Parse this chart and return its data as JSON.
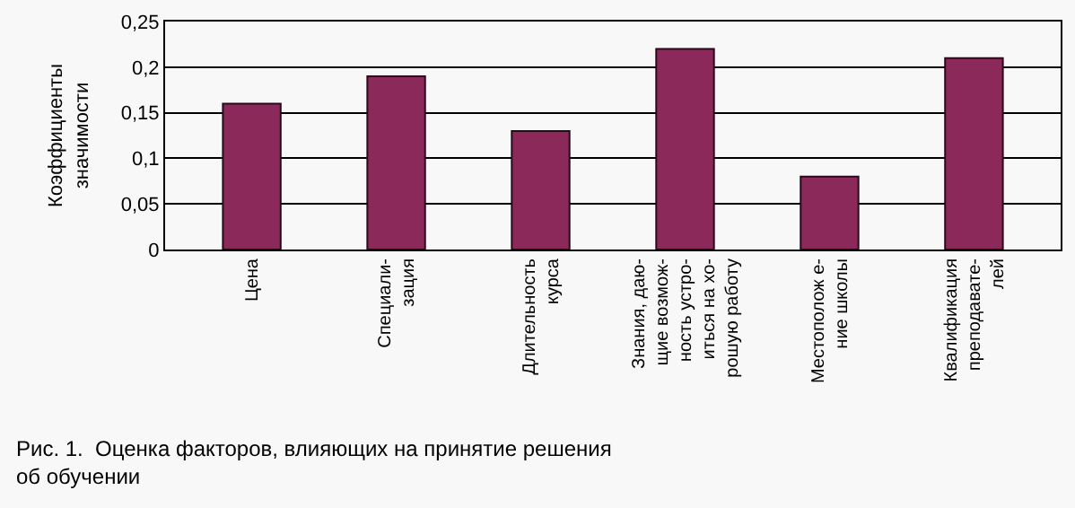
{
  "chart_data": {
    "type": "bar",
    "ylabel": "Коэффициенты\nзначимости",
    "categories": [
      "Цена",
      "Специали-\nзация",
      "Длительность\nкурса",
      "Знания, даю-\nщие возмож-\nность устро-\nиться на хо-\nрошую работу",
      "Местополож е-\nние школы",
      "Квалификация\nпреподавате-\nлей"
    ],
    "values": [
      0.16,
      0.19,
      0.13,
      0.22,
      0.08,
      0.21
    ],
    "color": "#8b2a5a",
    "ylim": [
      0,
      0.25
    ],
    "yticks": [
      {
        "value": 0,
        "label": "0"
      },
      {
        "value": 0.05,
        "label": "0,05"
      },
      {
        "value": 0.1,
        "label": "0,1"
      },
      {
        "value": 0.15,
        "label": "0,15"
      },
      {
        "value": 0.2,
        "label": "0,2"
      },
      {
        "value": 0.25,
        "label": "0,25"
      }
    ],
    "grid": "y",
    "annotations": [
      "Рис. 1.  Оценка факторов, влияющих на принятие решения\nоб обучении"
    ]
  }
}
